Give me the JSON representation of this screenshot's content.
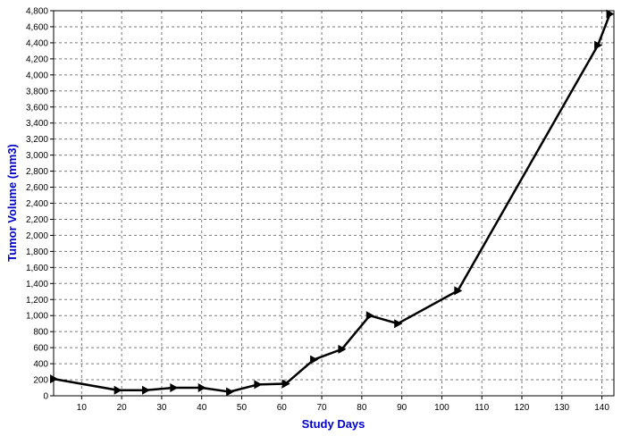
{
  "chart_data": {
    "type": "line",
    "xlabel": "Study Days",
    "ylabel": "Tumor Volume (mm3)",
    "xlim": [
      3,
      143
    ],
    "ylim": [
      0,
      4800
    ],
    "x_ticks": [
      10,
      20,
      30,
      40,
      50,
      60,
      70,
      80,
      90,
      100,
      110,
      120,
      130,
      140
    ],
    "y_ticks": [
      0,
      200,
      400,
      600,
      800,
      1000,
      1200,
      1400,
      1600,
      1800,
      2000,
      2200,
      2400,
      2600,
      2800,
      3000,
      3200,
      3400,
      3600,
      3800,
      4000,
      4200,
      4400,
      4600,
      4800
    ],
    "x_tick_labels": [
      "10",
      "20",
      "30",
      "40",
      "50",
      "60",
      "70",
      "80",
      "90",
      "100",
      "110",
      "120",
      "130",
      "140"
    ],
    "y_tick_labels": [
      "0",
      "200",
      "400",
      "600",
      "800",
      "1,000",
      "1,200",
      "1,400",
      "1,600",
      "1,800",
      "2,000",
      "2,200",
      "2,400",
      "2,600",
      "2,800",
      "3,000",
      "3,200",
      "3,400",
      "3,600",
      "3,800",
      "4,000",
      "4,200",
      "4,400",
      "4,600",
      "4,800"
    ],
    "grid": true,
    "series": [
      {
        "x": [
          3,
          19,
          26,
          33,
          40,
          47,
          54,
          61,
          68,
          75,
          82,
          89,
          104,
          139,
          142
        ],
        "y": [
          210,
          70,
          70,
          100,
          100,
          50,
          140,
          150,
          450,
          580,
          1000,
          900,
          1310,
          4370,
          4760
        ],
        "color": "#000000",
        "marker": "triangle-right"
      }
    ]
  },
  "colors": {
    "axis_title": "#0000cc",
    "line": "#000000",
    "grid": "#7a7a7a",
    "background": "#ffffff"
  }
}
